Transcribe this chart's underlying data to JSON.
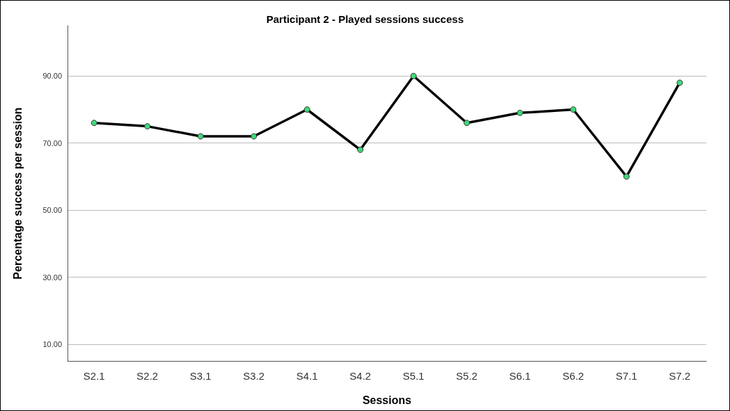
{
  "chart_data": {
    "type": "line",
    "title": "Participant 2 - Played sessions success",
    "xlabel": "Sessions",
    "ylabel": "Percentage success per session",
    "categories": [
      "S2.1",
      "S2.2",
      "S3.1",
      "S3.2",
      "S4.1",
      "S4.2",
      "S5.1",
      "S5.2",
      "S6.1",
      "S6.2",
      "S7.1",
      "S7.2"
    ],
    "series": [
      {
        "color": "#000000",
        "values": [
          76,
          75,
          72,
          72,
          80,
          68,
          90,
          76,
          79,
          80,
          60,
          88
        ]
      }
    ],
    "ylim": [
      5,
      105
    ],
    "yticks": [
      {
        "value": 10,
        "label": "10.00"
      },
      {
        "value": 30,
        "label": "30.00"
      },
      {
        "value": 50,
        "label": "50.00"
      },
      {
        "value": 70,
        "label": "70.00"
      },
      {
        "value": 90,
        "label": "90.00"
      }
    ],
    "grid": "y",
    "marker": "circle",
    "line_style": "solid"
  }
}
